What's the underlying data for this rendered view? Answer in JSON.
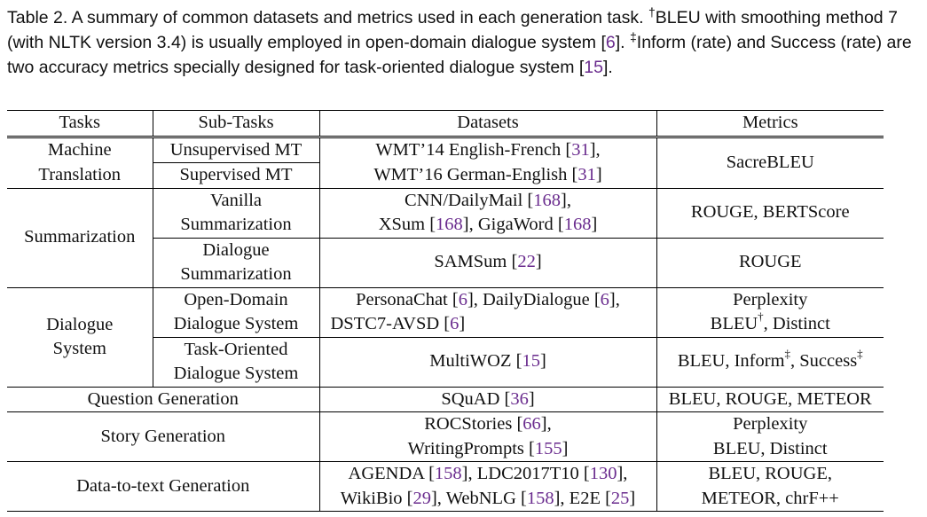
{
  "caption": {
    "part1": "Table 2.  A summary of common datasets and metrics used in each generation task. ",
    "dagger": "†",
    "part2": "BLEU with smoothing method 7 (with NLTK version 3.4) is usually employed in open-domain dialogue system [",
    "ref1": "6",
    "part3": "]. ",
    "ddagger": "‡",
    "part4": "Inform (rate) and Success (rate) are two accuracy metrics specially designed for task-oriented dialogue system [",
    "ref2": "15",
    "part5": "]."
  },
  "headers": {
    "tasks": "Tasks",
    "subtasks": "Sub-Tasks",
    "datasets": "Datasets",
    "metrics": "Metrics"
  },
  "rows": {
    "mt": {
      "task_l1": "Machine",
      "task_l2": "Translation",
      "sub1": "Unsupervised MT",
      "sub2": "Supervised MT",
      "ds_l1a": "WMT’14 English-French [",
      "ds_l1ref": "31",
      "ds_l1b": "],",
      "ds_l2a": "WMT’16 German-English [",
      "ds_l2ref": "31",
      "ds_l2b": "]",
      "metric": "SacreBLEU"
    },
    "sum": {
      "task": "Summarization",
      "sub1_l1": "Vanilla",
      "sub1_l2": "Summarization",
      "ds1_l1a": "CNN/DailyMail [",
      "ds1_l1ref": "168",
      "ds1_l1b": "],",
      "ds1_l2a": "XSum [",
      "ds1_l2ref": "168",
      "ds1_l2b": "], GigaWord [",
      "ds1_l2ref2": "168",
      "ds1_l2c": "]",
      "metric1": "ROUGE, BERTScore",
      "sub2_l1": "Dialogue",
      "sub2_l2": "Summarization",
      "ds2a": "SAMSum [",
      "ds2ref": "22",
      "ds2b": "]",
      "metric2": "ROUGE"
    },
    "dial": {
      "task_l1": "Dialogue",
      "task_l2": "System",
      "sub1_l1": "Open-Domain",
      "sub1_l2": "Dialogue System",
      "ds1_l1a": "PersonaChat [",
      "ds1_l1ref": "6",
      "ds1_l1b": "], DailyDialogue [",
      "ds1_l1ref2": "6",
      "ds1_l1c": "],",
      "ds1_l2a": "DSTC7-AVSD [",
      "ds1_l2ref": "6",
      "ds1_l2b": "]",
      "metric1_l1": "Perplexity",
      "metric1_l2a": "BLEU",
      "metric1_sup": "†",
      "metric1_l2b": ", Distinct",
      "sub2_l1": "Task-Oriented",
      "sub2_l2": "Dialogue System",
      "ds2a": "MultiWOZ [",
      "ds2ref": "15",
      "ds2b": "]",
      "metric2a": "BLEU, Inform",
      "metric2_sup1": "‡",
      "metric2b": ", Success",
      "metric2_sup2": "‡"
    },
    "qg": {
      "task": "Question Generation",
      "dsa": "SQuAD [",
      "dsref": "36",
      "dsb": "]",
      "metric": "BLEU, ROUGE, METEOR"
    },
    "story": {
      "task": "Story Generation",
      "ds_l1a": "ROCStories [",
      "ds_l1ref": "66",
      "ds_l1b": "],",
      "ds_l2a": "WritingPrompts [",
      "ds_l2ref": "155",
      "ds_l2b": "]",
      "metric_l1": "Perplexity",
      "metric_l2": "BLEU, Distinct"
    },
    "d2t": {
      "task": "Data-to-text Generation",
      "ds_l1a": "AGENDA [",
      "ds_l1ref": "158",
      "ds_l1b": "], LDC2017T10 [",
      "ds_l1ref2": "130",
      "ds_l1c": "],",
      "ds_l2a": "WikiBio [",
      "ds_l2ref": "29",
      "ds_l2b": "], WebNLG [",
      "ds_l2ref2": "158",
      "ds_l2c": "], E2E [",
      "ds_l2ref3": "25",
      "ds_l2d": "]",
      "metric_l1": "BLEU, ROUGE,",
      "metric_l2": "METEOR, chrF++"
    }
  }
}
